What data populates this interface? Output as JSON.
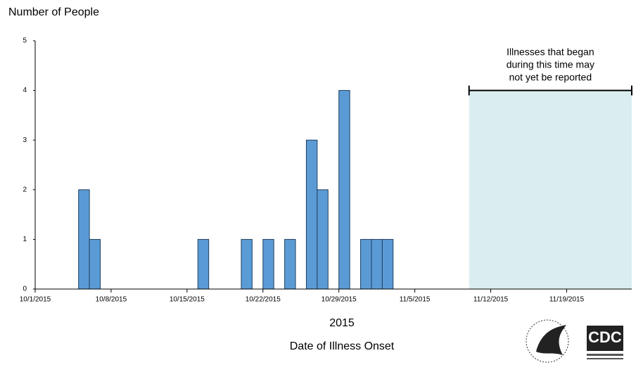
{
  "chart_data": {
    "type": "bar",
    "y_label": "Number of People",
    "x_label_year": "2015",
    "x_label": "Date of Illness Onset",
    "x": [
      "10/6/2015",
      "10/7/2015",
      "10/17/2015",
      "10/21/2015",
      "10/23/2015",
      "10/25/2015",
      "10/27/2015",
      "10/28/2015",
      "10/30/2015",
      "11/1/2015",
      "11/2/2015",
      "11/3/2015"
    ],
    "values": [
      2,
      1,
      1,
      1,
      1,
      1,
      3,
      2,
      4,
      1,
      1,
      1
    ],
    "color": "#5b9bd5",
    "xlim": [
      "10/1/2015",
      "11/25/2015"
    ],
    "xticks": [
      "10/1/2015",
      "10/8/2015",
      "10/15/2015",
      "10/22/2015",
      "10/29/2015",
      "11/5/2015",
      "11/12/2015",
      "11/19/2015"
    ],
    "ylim": [
      0,
      5
    ],
    "yticks": [
      0,
      1,
      2,
      3,
      4,
      5
    ],
    "annotation": {
      "lines": [
        "Illnesses that began",
        "during this time may",
        "not yet be reported"
      ],
      "start": "11/10/2015",
      "end": "11/25/2015",
      "height": 4,
      "color": "#daeef0"
    },
    "logo_text": "CDC"
  }
}
